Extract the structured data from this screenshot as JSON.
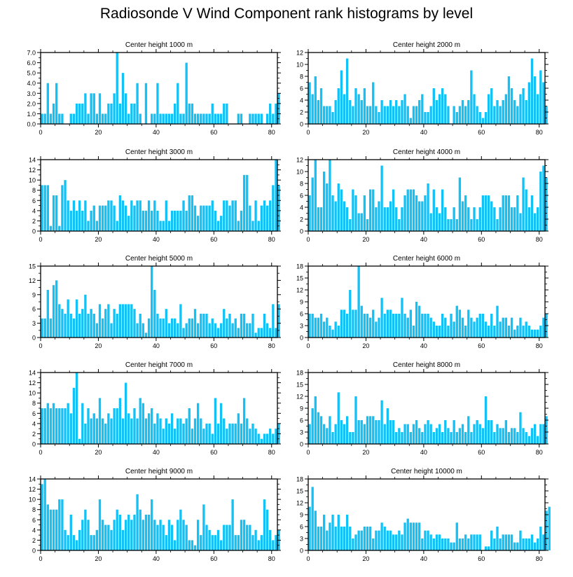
{
  "figure_title": "Radiosonde V Wind Component rank histograms by level",
  "bar_color": "#12c1f5",
  "chart_data": [
    {
      "type": "bar",
      "title": "Center height 1000 m",
      "ylim": [
        0,
        7
      ],
      "yticks": [
        0,
        1,
        2,
        3,
        4,
        5,
        6,
        7
      ],
      "ytick_labels": [
        "0.0",
        "1.0",
        "2.0",
        "3.0",
        "4.0",
        "5.0",
        "6.0",
        "7.0"
      ],
      "xlim": [
        0,
        82
      ],
      "xticks": [
        0,
        20,
        40,
        60,
        80
      ],
      "values": [
        1,
        1,
        4,
        1,
        2,
        4,
        1,
        1,
        0,
        0,
        1,
        1,
        2,
        2,
        2,
        3,
        1,
        3,
        3,
        1,
        3,
        1,
        1,
        2,
        2,
        3,
        7,
        2,
        5,
        3,
        1,
        2,
        2,
        4,
        1,
        0,
        4,
        0,
        1,
        1,
        4,
        1,
        1,
        1,
        1,
        1,
        2,
        4,
        1,
        1,
        6,
        2,
        2,
        1,
        1,
        1,
        1,
        1,
        1,
        2,
        1,
        1,
        1,
        2,
        2,
        0,
        0,
        0,
        1,
        1,
        0,
        0,
        1,
        1,
        1,
        1,
        1,
        0,
        1,
        2,
        1,
        2,
        3
      ]
    },
    {
      "type": "bar",
      "title": "Center height 2000 m",
      "ylim": [
        0,
        12
      ],
      "yticks": [
        0,
        2,
        4,
        6,
        8,
        10,
        12
      ],
      "ytick_labels": [
        "0",
        "2",
        "4",
        "6",
        "8",
        "10",
        "12"
      ],
      "xlim": [
        0,
        82
      ],
      "xticks": [
        0,
        20,
        40,
        60,
        80
      ],
      "values": [
        7,
        5,
        8,
        4,
        6,
        3,
        3,
        3,
        2,
        4,
        6,
        9,
        5,
        11,
        4,
        3,
        6,
        5,
        4,
        6,
        3,
        3,
        7,
        3,
        2,
        4,
        3,
        3,
        4,
        3,
        4,
        3,
        4,
        5,
        3,
        1,
        3,
        3,
        4,
        5,
        2,
        2,
        3,
        6,
        4,
        5,
        6,
        5,
        3,
        0,
        3,
        2,
        3,
        4,
        3,
        4,
        9,
        5,
        3,
        2,
        1,
        2,
        5,
        6,
        3,
        4,
        3,
        4,
        5,
        8,
        6,
        4,
        3,
        5,
        6,
        4,
        7,
        11,
        8,
        5,
        9,
        7,
        3
      ]
    },
    {
      "type": "bar",
      "title": "Center height 3000 m",
      "ylim": [
        0,
        14
      ],
      "yticks": [
        0,
        2,
        4,
        6,
        8,
        10,
        12,
        14
      ],
      "ytick_labels": [
        "0",
        "2",
        "4",
        "6",
        "8",
        "10",
        "12",
        "14"
      ],
      "xlim": [
        0,
        82
      ],
      "xticks": [
        0,
        20,
        40,
        60,
        80
      ],
      "values": [
        9,
        9,
        9,
        1,
        7,
        7,
        1,
        9,
        10,
        6,
        4,
        6,
        4,
        6,
        4,
        6,
        2,
        4,
        5,
        2,
        5,
        5,
        5,
        6,
        6,
        5,
        2,
        7,
        6,
        5,
        3,
        6,
        5,
        6,
        6,
        4,
        4,
        6,
        4,
        6,
        4,
        2,
        2,
        6,
        2,
        4,
        4,
        4,
        4,
        6,
        4,
        7,
        7,
        5,
        3,
        5,
        5,
        5,
        5,
        6,
        4,
        2,
        3,
        6,
        6,
        5,
        6,
        6,
        2,
        4,
        11,
        11,
        5,
        2,
        6,
        2,
        5,
        6,
        5,
        6,
        9,
        14,
        9
      ]
    },
    {
      "type": "bar",
      "title": "Center height 4000 m",
      "ylim": [
        0,
        12
      ],
      "yticks": [
        0,
        2,
        4,
        6,
        8,
        10,
        12
      ],
      "ytick_labels": [
        "0",
        "2",
        "4",
        "6",
        "8",
        "10",
        "12"
      ],
      "xlim": [
        0,
        82
      ],
      "xticks": [
        0,
        20,
        40,
        60,
        80
      ],
      "values": [
        6,
        9,
        12,
        4,
        4,
        10,
        8,
        12,
        6,
        5,
        8,
        7,
        5,
        4,
        2,
        7,
        6,
        3,
        3,
        6,
        2,
        7,
        7,
        4,
        5,
        11,
        4,
        4,
        5,
        7,
        4,
        2,
        4,
        6,
        7,
        7,
        7,
        6,
        5,
        5,
        6,
        8,
        3,
        7,
        4,
        3,
        7,
        4,
        2,
        2,
        4,
        2,
        9,
        5,
        6,
        4,
        2,
        4,
        2,
        4,
        6,
        6,
        6,
        5,
        4,
        2,
        4,
        6,
        6,
        6,
        4,
        4,
        6,
        3,
        9,
        7,
        4,
        6,
        3,
        4,
        10,
        11,
        9
      ]
    },
    {
      "type": "bar",
      "title": "Center height 5000 m",
      "ylim": [
        0,
        15
      ],
      "yticks": [
        0,
        3,
        6,
        9,
        12,
        15
      ],
      "ytick_labels": [
        "0",
        "3",
        "6",
        "9",
        "12",
        "15"
      ],
      "xlim": [
        0,
        82
      ],
      "xticks": [
        0,
        20,
        40,
        60,
        80
      ],
      "values": [
        4,
        4,
        10,
        4,
        11,
        12,
        7,
        6,
        5,
        8,
        5,
        4,
        8,
        5,
        6,
        9,
        5,
        6,
        5,
        3,
        7,
        4,
        6,
        7,
        3,
        6,
        5,
        7,
        7,
        7,
        7,
        7,
        6,
        3,
        5,
        3,
        1,
        4,
        15,
        10,
        5,
        4,
        4,
        6,
        3,
        4,
        4,
        3,
        7,
        2,
        3,
        4,
        4,
        6,
        3,
        5,
        5,
        5,
        3,
        4,
        3,
        2,
        3,
        6,
        4,
        5,
        3,
        4,
        2,
        5,
        5,
        3,
        3,
        5,
        1,
        2,
        2,
        5,
        3,
        2,
        7,
        2,
        7
      ]
    },
    {
      "type": "bar",
      "title": "Center height 6000 m",
      "ylim": [
        0,
        18
      ],
      "yticks": [
        0,
        3,
        6,
        9,
        12,
        15,
        18
      ],
      "ytick_labels": [
        "0",
        "3",
        "6",
        "9",
        "12",
        "15",
        "18"
      ],
      "xlim": [
        0,
        82
      ],
      "xticks": [
        0,
        20,
        40,
        60,
        80
      ],
      "values": [
        6,
        6,
        5,
        5,
        6,
        4,
        5,
        3,
        2,
        4,
        3,
        7,
        7,
        6,
        12,
        7,
        7,
        18,
        8,
        6,
        6,
        5,
        7,
        4,
        5,
        10,
        6,
        7,
        7,
        6,
        6,
        6,
        10,
        6,
        5,
        7,
        3,
        9,
        8,
        6,
        6,
        6,
        5,
        4,
        3,
        3,
        6,
        5,
        3,
        6,
        4,
        8,
        7,
        5,
        3,
        7,
        5,
        4,
        5,
        6,
        6,
        4,
        3,
        6,
        3,
        8,
        4,
        5,
        5,
        3,
        5,
        2,
        3,
        5,
        3,
        4,
        3,
        2,
        2,
        2,
        3,
        5,
        6
      ]
    },
    {
      "type": "bar",
      "title": "Center height 7000 m",
      "ylim": [
        0,
        14
      ],
      "yticks": [
        0,
        2,
        4,
        6,
        8,
        10,
        12,
        14
      ],
      "ytick_labels": [
        "0",
        "2",
        "4",
        "6",
        "8",
        "10",
        "12",
        "14"
      ],
      "xlim": [
        0,
        82
      ],
      "xticks": [
        0,
        20,
        40,
        60,
        80
      ],
      "values": [
        7,
        7,
        8,
        7,
        8,
        7,
        7,
        7,
        7,
        8,
        6,
        11,
        14,
        1,
        8,
        4,
        7,
        5,
        6,
        5,
        9,
        5,
        4,
        6,
        5,
        7,
        7,
        9,
        5,
        12,
        6,
        5,
        7,
        5,
        9,
        8,
        5,
        6,
        7,
        4,
        6,
        5,
        3,
        5,
        4,
        6,
        3,
        5,
        5,
        4,
        5,
        7,
        3,
        5,
        8,
        5,
        3,
        4,
        4,
        2,
        9,
        4,
        8,
        5,
        3,
        4,
        4,
        4,
        6,
        4,
        9,
        5,
        3,
        4,
        3,
        2,
        1,
        2,
        2,
        3,
        2,
        3,
        4
      ]
    },
    {
      "type": "bar",
      "title": "Center height 8000 m",
      "ylim": [
        0,
        18
      ],
      "yticks": [
        0,
        3,
        6,
        9,
        12,
        15,
        18
      ],
      "ytick_labels": [
        "0",
        "3",
        "6",
        "9",
        "12",
        "15",
        "18"
      ],
      "xlim": [
        0,
        82
      ],
      "xticks": [
        0,
        20,
        40,
        60,
        80
      ],
      "values": [
        5,
        9,
        12,
        8,
        7,
        5,
        4,
        7,
        3,
        5,
        13,
        6,
        5,
        7,
        3,
        3,
        12,
        6,
        6,
        5,
        7,
        7,
        7,
        6,
        6,
        11,
        5,
        9,
        6,
        6,
        3,
        4,
        3,
        5,
        5,
        3,
        5,
        6,
        4,
        3,
        5,
        6,
        5,
        3,
        4,
        5,
        3,
        6,
        4,
        3,
        6,
        3,
        4,
        5,
        3,
        7,
        3,
        5,
        6,
        5,
        4,
        12,
        6,
        6,
        3,
        5,
        4,
        4,
        6,
        3,
        4,
        4,
        3,
        8,
        4,
        3,
        2,
        4,
        5,
        2,
        5,
        5,
        7
      ]
    },
    {
      "type": "bar",
      "title": "Center height 9000 m",
      "ylim": [
        0,
        14
      ],
      "yticks": [
        0,
        2,
        4,
        6,
        8,
        10,
        12,
        14
      ],
      "ytick_labels": [
        "0",
        "2",
        "4",
        "6",
        "8",
        "10",
        "12",
        "14"
      ],
      "xlim": [
        0,
        82
      ],
      "xticks": [
        0,
        20,
        40,
        60,
        80
      ],
      "values": [
        13,
        14,
        9,
        8,
        8,
        8,
        10,
        10,
        4,
        3,
        7,
        3,
        2,
        4,
        6,
        8,
        6,
        3,
        3,
        4,
        10,
        6,
        5,
        5,
        4,
        6,
        8,
        7,
        4,
        6,
        7,
        6,
        7,
        11,
        8,
        6,
        7,
        7,
        10,
        6,
        5,
        6,
        5,
        3,
        6,
        5,
        2,
        6,
        8,
        6,
        5,
        2,
        2,
        1,
        6,
        3,
        9,
        5,
        4,
        3,
        3,
        4,
        2,
        5,
        5,
        5,
        10,
        3,
        3,
        6,
        6,
        5,
        5,
        3,
        4,
        2,
        3,
        10,
        8,
        4,
        2,
        3,
        4
      ]
    },
    {
      "type": "bar",
      "title": "Center height 10000 m",
      "ylim": [
        0,
        18
      ],
      "yticks": [
        0,
        3,
        6,
        9,
        12,
        15,
        18
      ],
      "ytick_labels": [
        "0",
        "3",
        "6",
        "9",
        "12",
        "15",
        "18"
      ],
      "xlim": [
        0,
        82
      ],
      "xticks": [
        0,
        20,
        40,
        60,
        80
      ],
      "values": [
        11,
        16,
        10,
        6,
        6,
        9,
        5,
        7,
        9,
        6,
        9,
        6,
        6,
        9,
        6,
        3,
        4,
        5,
        5,
        6,
        6,
        6,
        3,
        5,
        5,
        7,
        6,
        5,
        5,
        4,
        4,
        5,
        4,
        7,
        8,
        7,
        7,
        7,
        7,
        3,
        5,
        5,
        4,
        3,
        4,
        4,
        3,
        3,
        3,
        2,
        2,
        7,
        3,
        3,
        4,
        3,
        4,
        4,
        4,
        4,
        0,
        1,
        1,
        5,
        3,
        6,
        3,
        4,
        4,
        4,
        4,
        2,
        2,
        5,
        3,
        3,
        3,
        4,
        2,
        3,
        6,
        4,
        10,
        11
      ]
    }
  ]
}
